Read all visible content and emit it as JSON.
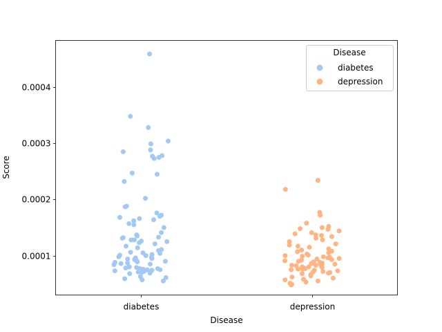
{
  "chart_data": {
    "type": "scatter",
    "subtype": "strip",
    "title": "",
    "xlabel": "Disease",
    "ylabel": "Score",
    "categories": [
      "diabetes",
      "depression"
    ],
    "ylim": [
      3e-05,
      0.000483
    ],
    "yticks": [
      0.0001,
      0.0002,
      0.0003,
      0.0004
    ],
    "ytick_labels": [
      "0.0001",
      "0.0002",
      "0.0003",
      "0.0004"
    ],
    "grid": false,
    "legend": {
      "title": "Disease",
      "position": "top-right",
      "entries": [
        "diabetes",
        "depression"
      ]
    },
    "colors": {
      "diabetes": "#a1c9f4",
      "depression": "#ffb482"
    },
    "series": [
      {
        "name": "diabetes",
        "category": "diabetes",
        "values": [
          0.000459,
          0.000348,
          0.000328,
          0.000304,
          0.000299,
          0.000288,
          0.000285,
          0.000278,
          0.000277,
          0.000275,
          0.000273,
          0.000247,
          0.000245,
          0.000232,
          0.000202,
          0.000188,
          0.000187,
          0.000176,
          0.000172,
          0.00017,
          0.000168,
          0.000166,
          0.000164,
          0.000162,
          0.000157,
          0.000155,
          0.00015,
          0.000141,
          0.000137,
          0.000135,
          0.000133,
          0.000132,
          0.000131,
          0.000128,
          0.000128,
          0.000126,
          0.000125,
          0.000123,
          0.000121,
          0.000117,
          0.000114,
          0.000111,
          0.000109,
          0.000106,
          0.000105,
          0.000104,
          0.000102,
          0.000101,
          0.0001,
          9.8e-05,
          9.7e-05,
          9.6e-05,
          9.5e-05,
          9.4e-05,
          9.3e-05,
          9.2e-05,
          9.1e-05,
          9e-05,
          8.9e-05,
          8.8e-05,
          8.7e-05,
          8.6e-05,
          8.5e-05,
          8.4e-05,
          8e-05,
          8e-05,
          7.9e-05,
          7.8e-05,
          7.7e-05,
          7.7e-05,
          7.6e-05,
          7.5e-05,
          7.5e-05,
          7.4e-05,
          7.3e-05,
          7.2e-05,
          7.1e-05,
          7e-05,
          6.9e-05,
          6.8e-05,
          6.3e-05,
          6.1e-05,
          5.9e-05,
          5.7e-05,
          5.5e-05
        ]
      },
      {
        "name": "depression",
        "category": "depression",
        "values": [
          0.000234,
          0.000218,
          0.000177,
          0.000172,
          0.000158,
          0.000152,
          0.00015,
          0.000148,
          0.000147,
          0.000144,
          0.000141,
          0.000139,
          0.000137,
          0.000136,
          0.000134,
          0.000131,
          0.000128,
          0.000125,
          0.000121,
          0.000119,
          0.000117,
          0.000115,
          0.000112,
          0.00011,
          0.000108,
          0.000107,
          0.000105,
          0.000103,
          0.000101,
          0.0001,
          9.9e-05,
          9.8e-05,
          9.7e-05,
          9.6e-05,
          9.5e-05,
          9.4e-05,
          9.3e-05,
          9.2e-05,
          9.1e-05,
          9e-05,
          8.9e-05,
          8.8e-05,
          8.7e-05,
          8.7e-05,
          8.6e-05,
          8.5e-05,
          8.5e-05,
          8.4e-05,
          8.3e-05,
          8.3e-05,
          8.2e-05,
          8.1e-05,
          8e-05,
          8e-05,
          7.9e-05,
          7.8e-05,
          7.7e-05,
          7.6e-05,
          7.6e-05,
          7.5e-05,
          7.4e-05,
          7.3e-05,
          7.2e-05,
          7.1e-05,
          7e-05,
          6.9e-05,
          6.8e-05,
          6.6e-05,
          6.4e-05,
          6.2e-05,
          6e-05,
          5.8e-05,
          5.7e-05,
          5.5e-05,
          5.3e-05,
          5.1e-05,
          4.9e-05,
          4.8e-05
        ]
      }
    ]
  }
}
